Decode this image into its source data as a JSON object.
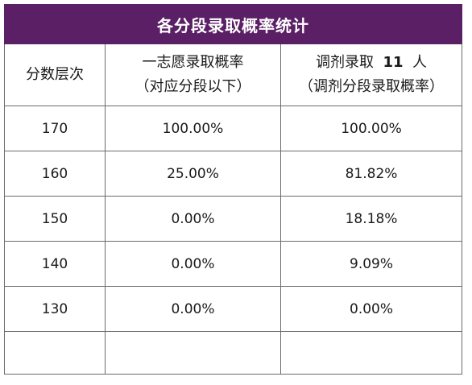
{
  "title": "各分段录取概率统计",
  "headers": {
    "col1": "分数层次",
    "col2_line1": "一志愿录取概率",
    "col2_line2": "（对应分段以下）",
    "col3_prefix": "调剂录取",
    "col3_count": "11",
    "col3_suffix": "人",
    "col3_line2": "（调剂分段录取概率）"
  },
  "rows": [
    {
      "score": "170",
      "first": "100.00%",
      "adjust": "100.00%"
    },
    {
      "score": "160",
      "first": "25.00%",
      "adjust": "81.82%"
    },
    {
      "score": "150",
      "first": "0.00%",
      "adjust": "18.18%"
    },
    {
      "score": "140",
      "first": "0.00%",
      "adjust": "9.09%"
    },
    {
      "score": "130",
      "first": "0.00%",
      "adjust": "0.00%"
    }
  ],
  "colors": {
    "header_bg": "#5b1f66",
    "header_text": "#ffffff",
    "border": "#6b6b6b"
  }
}
